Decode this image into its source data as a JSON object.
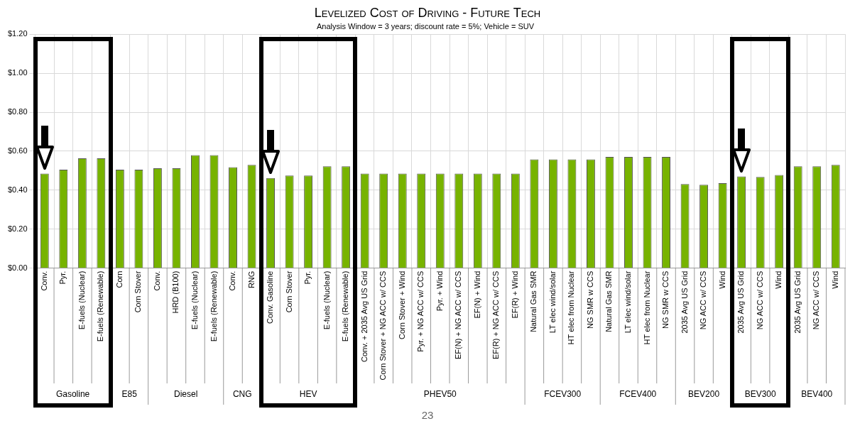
{
  "chart_data": {
    "type": "bar",
    "title": "Levelized Cost of Driving - Future Tech",
    "subtitle": "Analysis Window = 3 years; discount rate = 5%; Vehicle = SUV",
    "categories": [
      "Conv.",
      "Pyr.",
      "E-fuels (Nuclear)",
      "E-fuels (Renewable)",
      "Corn",
      "Corn Stover",
      "Conv.",
      "HRD (B100)",
      "E-fuels (Nuclear)",
      "E-fuels (Renewable)",
      "Conv.",
      "RNG",
      "Conv. Gasoline",
      "Corn Stover",
      "Pyr.",
      "E-fuels (Nuclear)",
      "E-fuels (Renewable)",
      "Conv. + 2035 Avg US Grid",
      "Corn Stover + NG ACC w/ CCS",
      "Corn Stover + Wind",
      "Pyr. + NG ACC w/ CCS",
      "Pyr. + Wind",
      "EF(N) + NG ACC w/ CCS",
      "EF(N) + Wind",
      "EF(R) + NG ACC w/ CCS",
      "EF(R) + Wind",
      "Natural Gas SMR",
      "LT elec wind/solar",
      "HT elec from Nuclear",
      "NG SMR w CCS",
      "Natural Gas SMR",
      "LT elec wind/solar",
      "HT elec from Nuclear",
      "NG SMR w CCS",
      "2035 Avg US Grid",
      "NG ACC w/ CCS",
      "Wind",
      "2035 Avg US Grid",
      "NG ACC w/ CCS",
      "Wind",
      "2035 Avg US Grid",
      "NG ACC w/ CCS",
      "Wind"
    ],
    "values": [
      0.485,
      0.505,
      0.563,
      0.563,
      0.505,
      0.505,
      0.512,
      0.512,
      0.58,
      0.58,
      0.518,
      0.53,
      0.462,
      0.475,
      0.475,
      0.522,
      0.522,
      0.485,
      0.485,
      0.485,
      0.485,
      0.485,
      0.485,
      0.485,
      0.485,
      0.485,
      0.558,
      0.558,
      0.558,
      0.558,
      0.571,
      0.571,
      0.571,
      0.571,
      0.431,
      0.428,
      0.436,
      0.47,
      0.468,
      0.478,
      0.522,
      0.522,
      0.53
    ],
    "color": "#77b300",
    "ylim": [
      0,
      1.2
    ],
    "yticks": [
      {
        "value": 0,
        "label": "$0.00"
      },
      {
        "value": 0.2,
        "label": "$0.20"
      },
      {
        "value": 0.4,
        "label": "$0.40"
      },
      {
        "value": 0.6,
        "label": "$0.60"
      },
      {
        "value": 0.8,
        "label": "$0.80"
      },
      {
        "value": 1.0,
        "label": "$1.00"
      },
      {
        "value": 1.2,
        "label": "$1.20"
      }
    ],
    "grid": true,
    "annotations": [
      "Gasoline",
      "E85",
      "Diesel",
      "CNG",
      "HEV",
      "PHEV50",
      "FCEV300",
      "FCEV400",
      "BEV200",
      "BEV300",
      "BEV400",
      "23"
    ]
  }
}
